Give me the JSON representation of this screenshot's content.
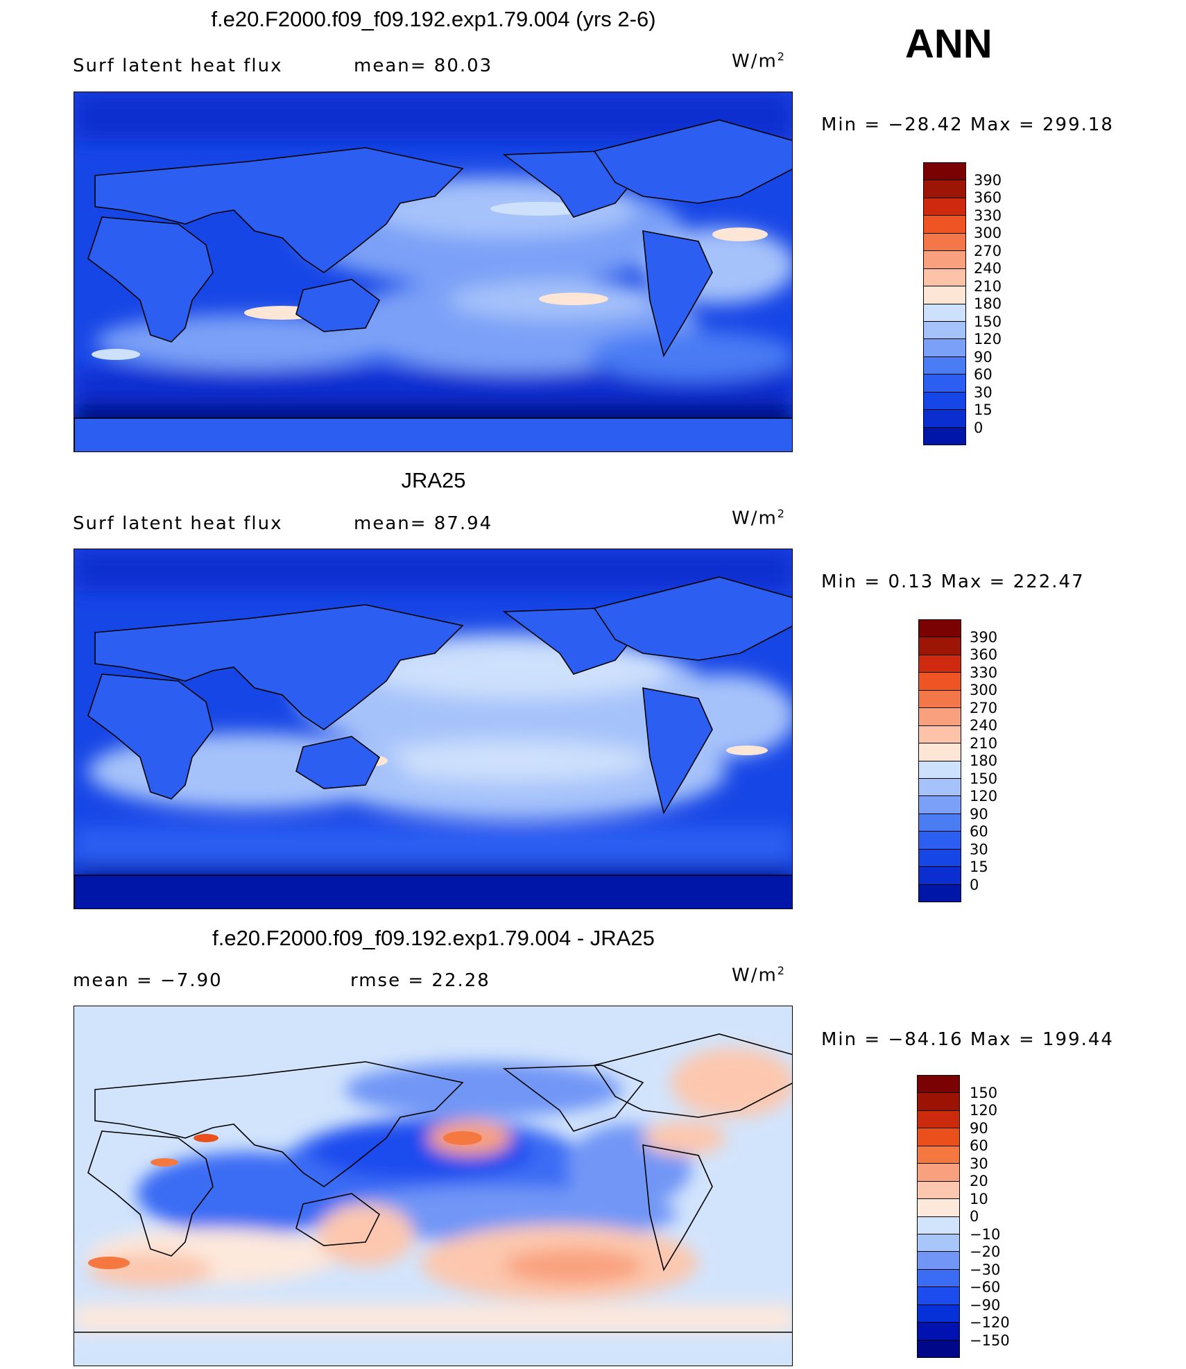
{
  "season": "ANN",
  "colors": {
    "abs_scale": [
      "#000a80",
      "#0016a8",
      "#0a2ed0",
      "#1746e6",
      "#2c5ef2",
      "#4a7cf4",
      "#7aa0f7",
      "#a6c2fa",
      "#cde0fc",
      "#fde6d6",
      "#fcc3a8",
      "#f9a07e",
      "#f37748",
      "#ee5424",
      "#cf2a10",
      "#9c1505",
      "#7a0202"
    ],
    "diff_scale": [
      "#00088a",
      "#0012b0",
      "#0630d8",
      "#1c4cee",
      "#3a6cf4",
      "#7196f6",
      "#a8c6fa",
      "#d2e4fc",
      "#fde8dc",
      "#fcc7ae",
      "#f9a17e",
      "#f4783f",
      "#ea4f1c",
      "#cb2a0c",
      "#9c1205",
      "#7a0202"
    ]
  },
  "panels": [
    {
      "id": "model",
      "title": "f.e20.F2000.f09_f09.192.exp1.79.004 (yrs 2-6)",
      "left_label": "Surf  latent  heat  flux",
      "stat1": "mean=   80.03",
      "stat2": "",
      "units": "W/m",
      "units_sup": "2",
      "minmax": "Min  =  −28.42  Max  =  299.18",
      "levels": [
        "390",
        "360",
        "330",
        "300",
        "270",
        "240",
        "210",
        "180",
        "150",
        "120",
        "90",
        "60",
        "30",
        "15",
        "0"
      ],
      "scale": "abs"
    },
    {
      "id": "obs",
      "title": "JRA25",
      "left_label": "Surf  latent  heat  flux",
      "stat1": "mean=   87.94",
      "stat2": "",
      "units": "W/m",
      "units_sup": "2",
      "minmax": "Min  =      0.13  Max  =  222.47",
      "levels": [
        "390",
        "360",
        "330",
        "300",
        "270",
        "240",
        "210",
        "180",
        "150",
        "120",
        "90",
        "60",
        "30",
        "15",
        "0"
      ],
      "scale": "abs"
    },
    {
      "id": "diff",
      "title": "f.e20.F2000.f09_f09.192.exp1.79.004 - JRA25",
      "left_label": "mean  =    −7.90",
      "stat1": "",
      "stat2": "rmse  =    22.28",
      "units": "W/m",
      "units_sup": "2",
      "minmax": "Min  =  −84.16  Max  =  199.44",
      "levels": [
        "150",
        "120",
        "90",
        "60",
        "30",
        "20",
        "10",
        "0",
        "−10",
        "−20",
        "−30",
        "−60",
        "−90",
        "−120",
        "−150"
      ],
      "scale": "diff"
    }
  ]
}
